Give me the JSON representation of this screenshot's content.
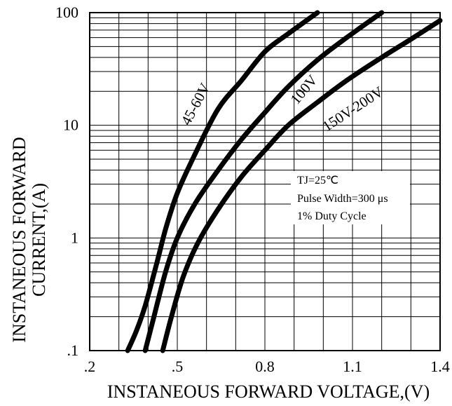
{
  "chart_data": {
    "type": "line",
    "title": "",
    "xlabel": "INSTANEOUS FORWARD VOLTAGE,(V)",
    "ylabel_lines": [
      "INSTANEOUS FORWARD",
      "CURRENT,(A)"
    ],
    "xlim": [
      0.2,
      1.4
    ],
    "ylim": [
      0.1,
      100
    ],
    "yscale": "log",
    "x_ticks": [
      {
        "value": 0.2,
        "label": ".2"
      },
      {
        "value": 0.5,
        "label": ".5"
      },
      {
        "value": 0.8,
        "label": "0.8"
      },
      {
        "value": 1.1,
        "label": "1.1"
      },
      {
        "value": 1.4,
        "label": "1.4"
      }
    ],
    "y_ticks": [
      {
        "value": 0.1,
        "label": ".1"
      },
      {
        "value": 1,
        "label": "1"
      },
      {
        "value": 10,
        "label": "10"
      },
      {
        "value": 100,
        "label": "100"
      }
    ],
    "grid": true,
    "series": [
      {
        "name": "45-60V",
        "x": [
          0.33,
          0.36,
          0.39,
          0.43,
          0.46,
          0.5,
          0.56,
          0.64,
          0.72,
          0.8,
          0.88,
          0.98
        ],
        "y": [
          0.1,
          0.15,
          0.25,
          0.6,
          1.2,
          2.5,
          5.5,
          14,
          25,
          45,
          65,
          100
        ]
      },
      {
        "name": "100V",
        "x": [
          0.39,
          0.42,
          0.46,
          0.5,
          0.56,
          0.64,
          0.72,
          0.8,
          0.88,
          0.98,
          1.08,
          1.2
        ],
        "y": [
          0.1,
          0.2,
          0.5,
          1.0,
          2.0,
          4.0,
          7.5,
          13,
          22,
          38,
          60,
          100
        ]
      },
      {
        "name": "150V-200V",
        "x": [
          0.45,
          0.48,
          0.52,
          0.57,
          0.64,
          0.72,
          0.8,
          0.88,
          0.98,
          1.08,
          1.2,
          1.3,
          1.4
        ],
        "y": [
          0.1,
          0.2,
          0.45,
          0.9,
          1.8,
          3.5,
          6.0,
          10,
          16,
          25,
          40,
          58,
          85
        ]
      }
    ],
    "annotation_lines": [
      "TJ=25℃",
      "Pulse Width=300 μs",
      "1% Duty Cycle"
    ]
  }
}
